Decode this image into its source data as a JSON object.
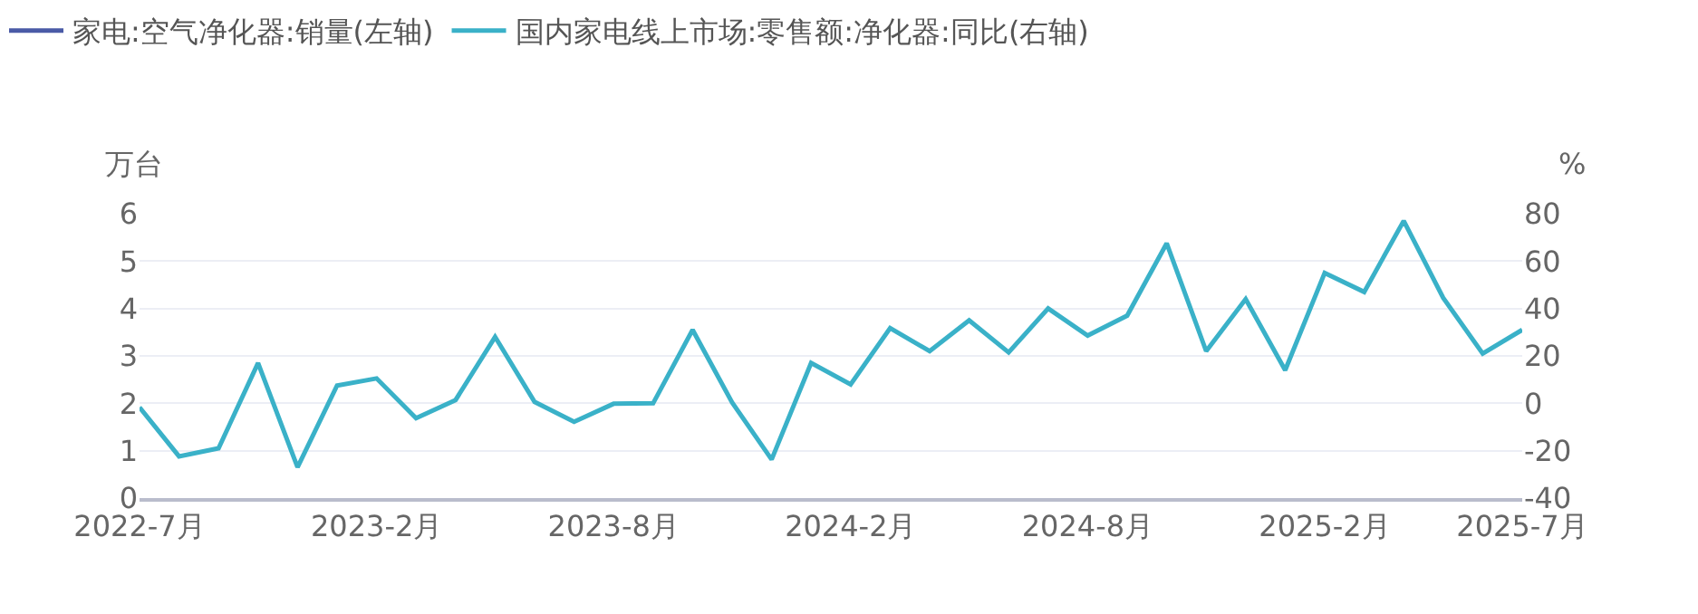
{
  "chart_data": {
    "type": "line",
    "ylabel": "万台",
    "y2label": "%",
    "categories": [
      "2022-7月",
      null,
      null,
      null,
      null,
      null,
      "2023-2月",
      null,
      null,
      null,
      null,
      null,
      "2023-8月",
      null,
      null,
      null,
      null,
      null,
      "2024-2月",
      null,
      null,
      null,
      null,
      null,
      "2024-8月",
      null,
      null,
      null,
      null,
      null,
      "2025-2月",
      null,
      null,
      null,
      null,
      "2025-7月"
    ],
    "series": [
      {
        "name": "家电:空气净化器:销量(左轴)",
        "color": "#4a5aa6",
        "values": [
          null,
          null,
          null,
          null,
          null,
          null,
          null,
          null,
          null,
          null,
          null,
          null,
          null,
          null,
          null,
          null,
          null,
          null,
          null,
          null,
          null,
          null,
          null,
          null,
          null,
          null,
          null,
          null,
          null,
          null,
          null,
          null,
          null,
          null,
          null,
          null
        ]
      },
      {
        "name": "国内家电线上市场:零售额:净化器:同比(右轴)",
        "color": "#3ab1c8",
        "axis": "y2",
        "values": [
          -1.7,
          -22.4,
          -19,
          17,
          -27,
          7.5,
          10.5,
          -6.3,
          1.4,
          28,
          0.6,
          -7.8,
          -0.2,
          0,
          31,
          0.3,
          -23.7,
          17,
          8,
          31.7,
          22,
          35,
          21.5,
          40,
          28.6,
          37,
          67.5,
          22,
          44,
          14,
          55,
          47,
          77,
          44.5,
          21,
          31
        ]
      }
    ],
    "ylim": [
      0,
      6
    ],
    "yticks": [
      0,
      1,
      2,
      3,
      4,
      5,
      6
    ],
    "y2lim": [
      -40,
      80
    ],
    "y2ticks": [
      -40,
      -20,
      0,
      20,
      40,
      60,
      80
    ],
    "grid": "y",
    "legend": "top left",
    "marker": "none",
    "line_style": "solid"
  }
}
